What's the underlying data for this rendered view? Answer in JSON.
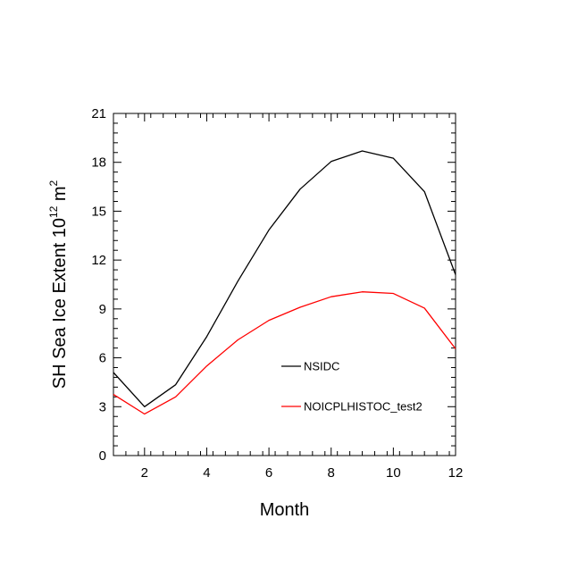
{
  "chart_data": {
    "type": "line",
    "xlabel": "Month",
    "ylabel_main": "SH Sea Ice Extent 10",
    "ylabel_exp1": "12",
    "ylabel_unit": " m",
    "ylabel_exp2": "2",
    "xlim": [
      1,
      12
    ],
    "ylim": [
      0,
      21
    ],
    "x_ticks": [
      2,
      4,
      6,
      8,
      10,
      12
    ],
    "x_tick_labels": [
      "2",
      "4",
      "6",
      "8",
      "10",
      "12"
    ],
    "y_ticks": [
      0,
      3,
      6,
      9,
      12,
      15,
      18,
      21
    ],
    "y_tick_labels": [
      "0",
      "3",
      "6",
      "9",
      "12",
      "15",
      "18",
      "21"
    ],
    "x": [
      1,
      2,
      3,
      4,
      5,
      6,
      7,
      8,
      9,
      10,
      11,
      12
    ],
    "series": [
      {
        "name": "NSIDC",
        "color": "#000000",
        "values": [
          5.1,
          3.0,
          4.35,
          7.3,
          10.7,
          13.85,
          16.35,
          18.05,
          18.7,
          18.25,
          16.2,
          11.1
        ]
      },
      {
        "name": "NOICPLHISTOC_test2",
        "color": "#ff0000",
        "values": [
          3.75,
          2.55,
          3.6,
          5.5,
          7.1,
          8.3,
          9.1,
          9.75,
          10.05,
          9.95,
          9.05,
          6.55
        ]
      }
    ],
    "legend_placement": "inside-lower-center"
  }
}
